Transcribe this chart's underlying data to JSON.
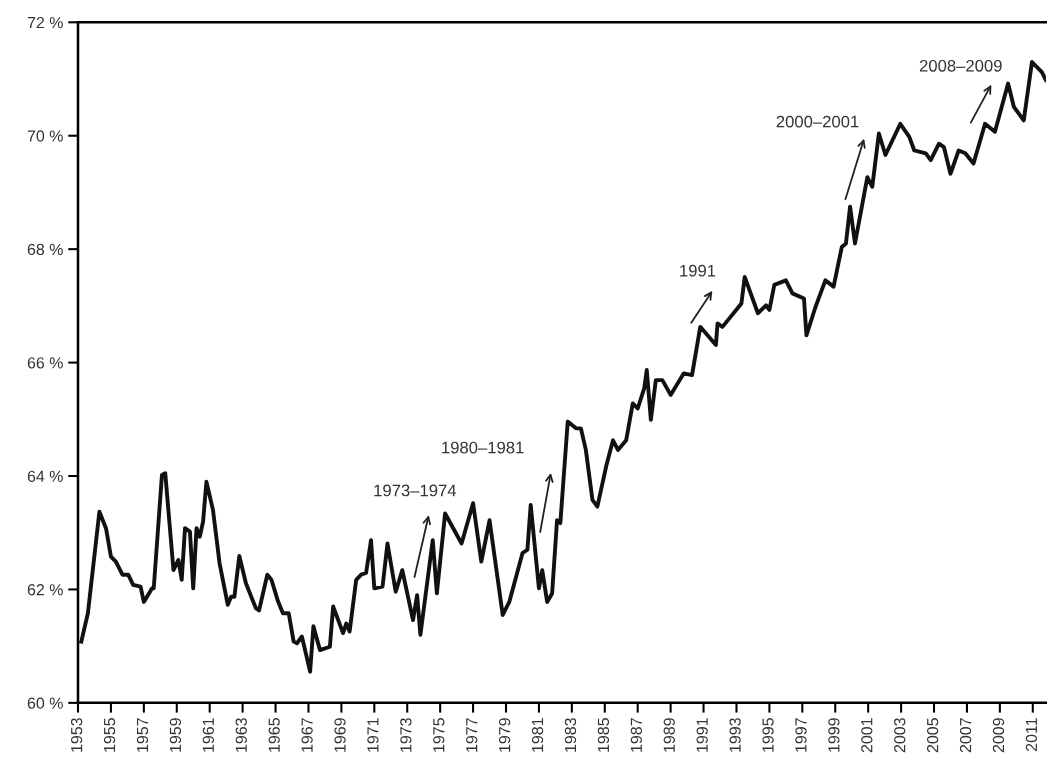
{
  "chart_data": {
    "type": "line",
    "color": "#111111",
    "marker": "none",
    "line_style": "solid",
    "grid": false,
    "legend": false,
    "x": [
      1953.2,
      1953.6,
      1954.3,
      1954.7,
      1955.0,
      1955.3,
      1955.7,
      1956.05,
      1956.35,
      1956.8,
      1957.0,
      1957.5,
      1957.6,
      1958.1,
      1958.3,
      1958.8,
      1959.1,
      1959.3,
      1959.5,
      1959.8,
      1960.0,
      1960.2,
      1960.4,
      1960.6,
      1960.8,
      1961.2,
      1961.6,
      1962.1,
      1962.3,
      1962.5,
      1962.8,
      1963.2,
      1963.8,
      1964.0,
      1964.5,
      1964.75,
      1965.15,
      1965.45,
      1965.8,
      1966.1,
      1966.3,
      1966.6,
      1967.1,
      1967.3,
      1967.7,
      1968.3,
      1968.5,
      1969.1,
      1969.3,
      1969.5,
      1969.9,
      1970.2,
      1970.5,
      1970.8,
      1971.0,
      1971.5,
      1971.8,
      1972.3,
      1972.7,
      1973.35,
      1973.6,
      1973.8,
      1974.55,
      1974.8,
      1975.3,
      1976.3,
      1977.0,
      1977.5,
      1978.0,
      1978.8,
      1979.2,
      1980.0,
      1980.3,
      1980.5,
      1981.0,
      1981.2,
      1981.5,
      1981.8,
      1982.1,
      1982.3,
      1982.75,
      1983.25,
      1983.55,
      1983.85,
      1984.25,
      1984.55,
      1985.1,
      1985.5,
      1985.8,
      1986.3,
      1986.7,
      1987.0,
      1987.4,
      1987.55,
      1987.8,
      1988.1,
      1988.5,
      1989.0,
      1989.8,
      1990.3,
      1990.8,
      1991.75,
      1991.85,
      1992.15,
      1993.3,
      1993.5,
      1994.3,
      1994.8,
      1995.0,
      1995.3,
      1996.0,
      1996.4,
      1997.1,
      1997.25,
      1997.8,
      1998.4,
      1998.9,
      1999.4,
      1999.65,
      1999.9,
      2000.2,
      2000.95,
      2001.25,
      2001.65,
      2002.05,
      2002.95,
      2003.5,
      2003.8,
      2004.5,
      2004.8,
      2005.3,
      2005.6,
      2006.0,
      2006.5,
      2006.9,
      2007.4,
      2008.1,
      2008.7,
      2009.5,
      2009.85,
      2010.45,
      2010.95,
      2011.55,
      2011.8
    ],
    "values": [
      61.08,
      61.58,
      63.37,
      63.08,
      62.58,
      62.49,
      62.26,
      62.26,
      62.08,
      62.05,
      61.78,
      62.02,
      62.02,
      64.02,
      64.05,
      62.34,
      62.52,
      62.17,
      63.08,
      63.02,
      62.02,
      63.08,
      62.93,
      63.2,
      63.9,
      63.4,
      62.46,
      61.73,
      61.87,
      61.87,
      62.59,
      62.11,
      61.67,
      61.63,
      62.26,
      62.17,
      61.79,
      61.58,
      61.58,
      61.08,
      61.05,
      61.17,
      60.55,
      61.35,
      60.93,
      60.99,
      61.7,
      61.23,
      61.4,
      61.26,
      62.17,
      62.26,
      62.29,
      62.87,
      62.02,
      62.05,
      62.81,
      61.96,
      62.34,
      61.46,
      61.9,
      61.2,
      62.87,
      61.93,
      63.34,
      62.81,
      63.52,
      62.49,
      63.22,
      61.55,
      61.78,
      62.64,
      62.7,
      63.49,
      62.02,
      62.34,
      61.78,
      61.93,
      63.22,
      63.17,
      64.96,
      64.84,
      64.84,
      64.46,
      63.58,
      63.46,
      64.19,
      64.63,
      64.46,
      64.63,
      65.28,
      65.19,
      65.55,
      65.87,
      64.99,
      65.69,
      65.69,
      65.43,
      65.81,
      65.78,
      66.63,
      66.31,
      66.69,
      66.63,
      67.04,
      67.51,
      66.87,
      67.01,
      66.93,
      67.37,
      67.45,
      67.22,
      67.13,
      66.48,
      66.98,
      67.45,
      67.34,
      68.04,
      68.1,
      68.75,
      68.1,
      69.27,
      69.1,
      70.04,
      69.66,
      70.21,
      69.98,
      69.74,
      69.69,
      69.57,
      69.86,
      69.8,
      69.33,
      69.74,
      69.69,
      69.51,
      70.21,
      70.07,
      70.92,
      70.51,
      70.27,
      71.3,
      71.12,
      70.98
    ],
    "xlim": [
      1953,
      2011.8
    ],
    "xticks": [
      1953,
      1955,
      1957,
      1959,
      1961,
      1963,
      1965,
      1967,
      1969,
      1971,
      1973,
      1975,
      1977,
      1979,
      1981,
      1983,
      1985,
      1987,
      1989,
      1991,
      1993,
      1995,
      1997,
      1999,
      2001,
      2003,
      2005,
      2007,
      2009,
      2011
    ],
    "ylim": [
      60,
      72
    ],
    "yticks": [
      {
        "value": 60,
        "label": "60 %"
      },
      {
        "value": 62,
        "label": "62 %"
      },
      {
        "value": 64,
        "label": "64 %"
      },
      {
        "value": 66,
        "label": "66 %"
      },
      {
        "value": 68,
        "label": "68 %"
      },
      {
        "value": 70,
        "label": "70 %"
      },
      {
        "value": 72,
        "label": "72 %"
      }
    ],
    "annotations": [
      "1973–1974",
      "1980–1981",
      "1991",
      "2000–2001",
      "2008–2009"
    ]
  }
}
